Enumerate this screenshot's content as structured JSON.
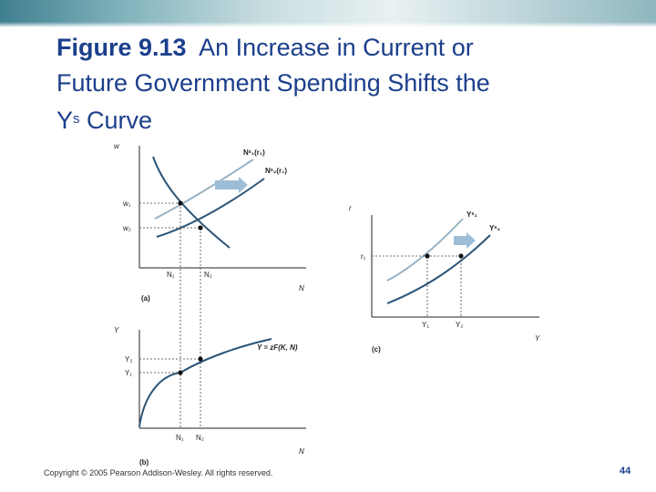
{
  "slide": {
    "title_fig": "Figure 9.13",
    "title_text1": "An Increase in Current or",
    "title_text2": "Future Government Spending Shifts the",
    "title_y": "Y",
    "title_sup": "s",
    "title_text3": " Curve",
    "copyright": "Copyright © 2005 Pearson Addison-Wesley. All rights reserved.",
    "page_number": "44"
  },
  "panel_a": {
    "axis_y": "w",
    "axis_x": "N",
    "curve1_label": "Nˢ₁(r₁)",
    "curve2_label": "Nˢ₂(r₁)",
    "w1": "w₁",
    "w2": "w₂",
    "n1": "N₁",
    "n2": "N₂",
    "panel_label": "(a)"
  },
  "panel_b": {
    "axis_y": "Y",
    "axis_x": "N",
    "y1": "Y₁",
    "y2": "Y₂",
    "n1": "N₁",
    "n2": "N₂",
    "curve_label": "Y = zF(K, N)",
    "panel_label": "(b)"
  },
  "panel_c": {
    "axis_y": "r",
    "axis_x": "Y",
    "r1": "r₁",
    "y1": "Y₁",
    "y2": "Y₂",
    "curve1_label": "Yˢ₁",
    "curve2_label": "Yˢ₂",
    "panel_label": "(c)"
  },
  "colors": {
    "title": "#1b3f8b",
    "curve_dark": "#2c5577",
    "curve_light": "#9ab3c4",
    "arrow": "#9dbdd6",
    "axis": "#222222"
  }
}
